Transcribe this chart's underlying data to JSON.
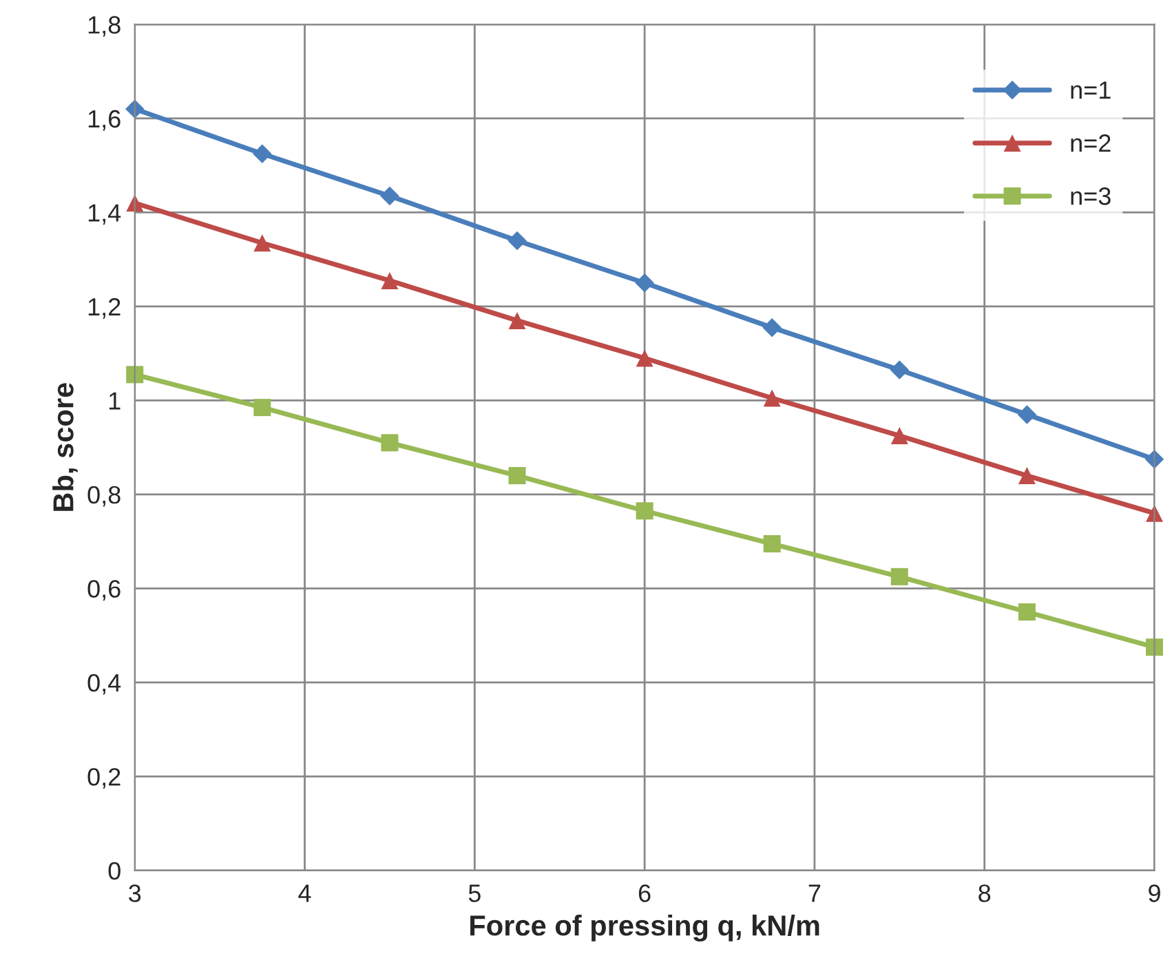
{
  "chart_data": {
    "type": "line",
    "xlabel": "Force of pressing q, kN/m",
    "ylabel": "Bb, score",
    "x": [
      3,
      3.75,
      4.5,
      5.25,
      6,
      6.75,
      7.5,
      8.25,
      9
    ],
    "series": [
      {
        "name": "n=1",
        "color": "#4a7ebb",
        "marker": "diamond",
        "values": [
          1.62,
          1.525,
          1.435,
          1.34,
          1.25,
          1.155,
          1.065,
          0.97,
          0.875
        ]
      },
      {
        "name": "n=2",
        "color": "#be4b48",
        "marker": "triangle",
        "values": [
          1.42,
          1.335,
          1.255,
          1.17,
          1.09,
          1.005,
          0.925,
          0.84,
          0.76
        ]
      },
      {
        "name": "n=3",
        "color": "#98b954",
        "marker": "square",
        "values": [
          1.055,
          0.985,
          0.91,
          0.84,
          0.765,
          0.695,
          0.625,
          0.55,
          0.475
        ]
      }
    ],
    "xlim": [
      3,
      9
    ],
    "xticks": [
      3,
      4,
      5,
      6,
      7,
      8,
      9
    ],
    "ylim": [
      0,
      1.8
    ],
    "yticks": [
      0,
      {
        "value": 0.2,
        "label": "0,2"
      },
      {
        "value": 0.4,
        "label": "0,4"
      },
      {
        "value": 0.6,
        "label": "0,6"
      },
      {
        "value": 0.8,
        "label": "0,8"
      },
      1,
      {
        "value": 1.2,
        "label": "1,2"
      },
      {
        "value": 1.4,
        "label": "1,4"
      },
      {
        "value": 1.6,
        "label": "1,6"
      },
      {
        "value": 1.8,
        "label": "1,8"
      }
    ],
    "grid": true,
    "legend": "top right",
    "line_style": "solid"
  }
}
